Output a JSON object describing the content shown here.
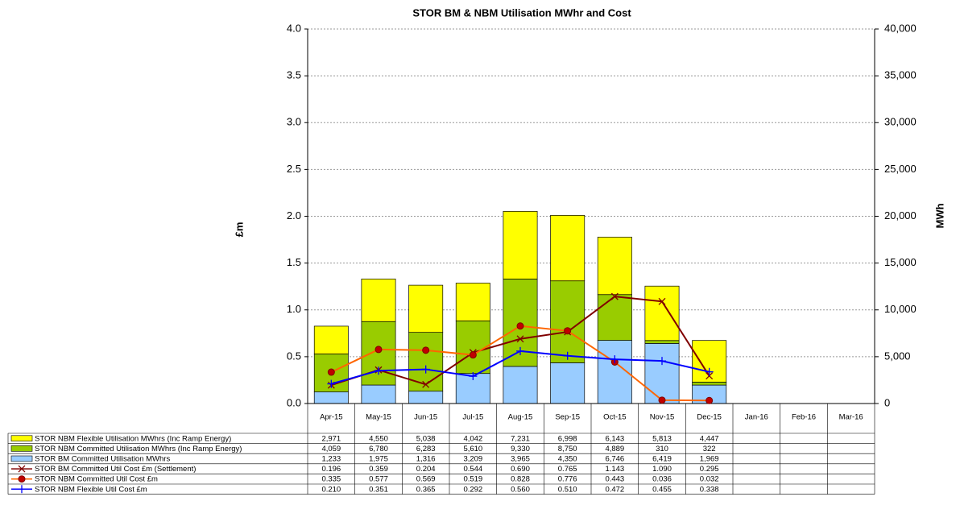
{
  "chart_data": {
    "type": "bar",
    "title": "STOR BM & NBM Utilisation MWhr and Cost",
    "y_label": "£m",
    "y2_label": "MWh",
    "categories": [
      "Apr-15",
      "May-15",
      "Jun-15",
      "Jul-15",
      "Aug-15",
      "Sep-15",
      "Oct-15",
      "Nov-15",
      "Dec-15",
      "Jan-16",
      "Feb-16",
      "Mar-16"
    ],
    "ylim": [
      0,
      4
    ],
    "yticks": [
      {
        "value": 0,
        "label": "0.0"
      },
      {
        "value": 0.5,
        "label": "0.5"
      },
      {
        "value": 1,
        "label": "1.0"
      },
      {
        "value": 1.5,
        "label": "1.5"
      },
      {
        "value": 2,
        "label": "2.0"
      },
      {
        "value": 2.5,
        "label": "2.5"
      },
      {
        "value": 3,
        "label": "3.0"
      },
      {
        "value": 3.5,
        "label": "3.5"
      },
      {
        "value": 4,
        "label": "4.0"
      }
    ],
    "y2lim": [
      0,
      40000
    ],
    "y2ticks": [
      0,
      {
        "value": 5000,
        "label": "5,000"
      },
      {
        "value": 10000,
        "label": "10,000"
      },
      {
        "value": 15000,
        "label": "15,000"
      },
      {
        "value": 20000,
        "label": "20,000"
      },
      {
        "value": 25000,
        "label": "25,000"
      },
      {
        "value": 30000,
        "label": "30,000"
      },
      {
        "value": 35000,
        "label": "35,000"
      },
      {
        "value": 40000,
        "label": "40,000"
      }
    ],
    "grid": true,
    "series": [
      {
        "name": "STOR NBM Flexible Utilisation MWhrs (Inc Ramp Energy)",
        "type": "bar",
        "axis": "y2",
        "color": "#ffff00",
        "values": [
          2971,
          4550,
          5038,
          4042,
          7231,
          6998,
          6143,
          5813,
          4447,
          null,
          null,
          null
        ],
        "value_labels": [
          "2,971",
          "4,550",
          "5,038",
          "4,042",
          "7,231",
          "6,998",
          "6,143",
          "5,813",
          "4,447",
          null,
          null,
          null
        ]
      },
      {
        "name": "STOR NBM Committed Utilisation MWhrs (Inc Ramp Energy)",
        "type": "bar",
        "axis": "y2",
        "color": "#99cc00",
        "values": [
          4059,
          6780,
          6283,
          5610,
          9330,
          8750,
          4889,
          310,
          322,
          null,
          null,
          null
        ],
        "value_labels": [
          "4,059",
          "6,780",
          "6,283",
          "5,610",
          "9,330",
          "8,750",
          "4,889",
          "310",
          "322",
          null,
          null,
          null
        ]
      },
      {
        "name": "STOR BM  Committed Utilisation MWhrs",
        "type": "bar",
        "axis": "y2",
        "color": "#99ccff",
        "values": [
          1233,
          1975,
          1316,
          3209,
          3965,
          4350,
          6746,
          6419,
          1969,
          null,
          null,
          null
        ],
        "value_labels": [
          "1,233",
          "1,975",
          "1,316",
          "3,209",
          "3,965",
          "4,350",
          "6,746",
          "6,419",
          "1,969",
          null,
          null,
          null
        ]
      },
      {
        "name": "STOR BM  Committed Util Cost £m (Settlement)",
        "type": "line",
        "marker": "x",
        "color": "#800000",
        "values": [
          0.196,
          0.359,
          0.204,
          0.544,
          0.69,
          0.765,
          1.143,
          1.09,
          0.295,
          null,
          null,
          null
        ],
        "value_labels": [
          "0.196",
          "0.359",
          "0.204",
          "0.544",
          "0.690",
          "0.765",
          "1.143",
          "1.090",
          "0.295",
          null,
          null,
          null
        ]
      },
      {
        "name": "STOR NBM Committed Util Cost £m",
        "type": "line",
        "marker": "circle",
        "color": "#ff6600",
        "values": [
          0.335,
          0.577,
          0.569,
          0.519,
          0.828,
          0.776,
          0.443,
          0.036,
          0.032,
          null,
          null,
          null
        ],
        "value_labels": [
          "0.335",
          "0.577",
          "0.569",
          "0.519",
          "0.828",
          "0.776",
          "0.443",
          "0.036",
          "0.032",
          null,
          null,
          null
        ]
      },
      {
        "name": "STOR NBM Flexible Util Cost £m",
        "type": "line",
        "marker": "plus",
        "color": "#0000ff",
        "values": [
          0.21,
          0.351,
          0.365,
          0.292,
          0.56,
          0.51,
          0.472,
          0.455,
          0.338,
          null,
          null,
          null
        ],
        "value_labels": [
          "0.210",
          "0.351",
          "0.365",
          "0.292",
          "0.560",
          "0.510",
          "0.472",
          "0.455",
          "0.338",
          null,
          null,
          null
        ]
      }
    ]
  }
}
